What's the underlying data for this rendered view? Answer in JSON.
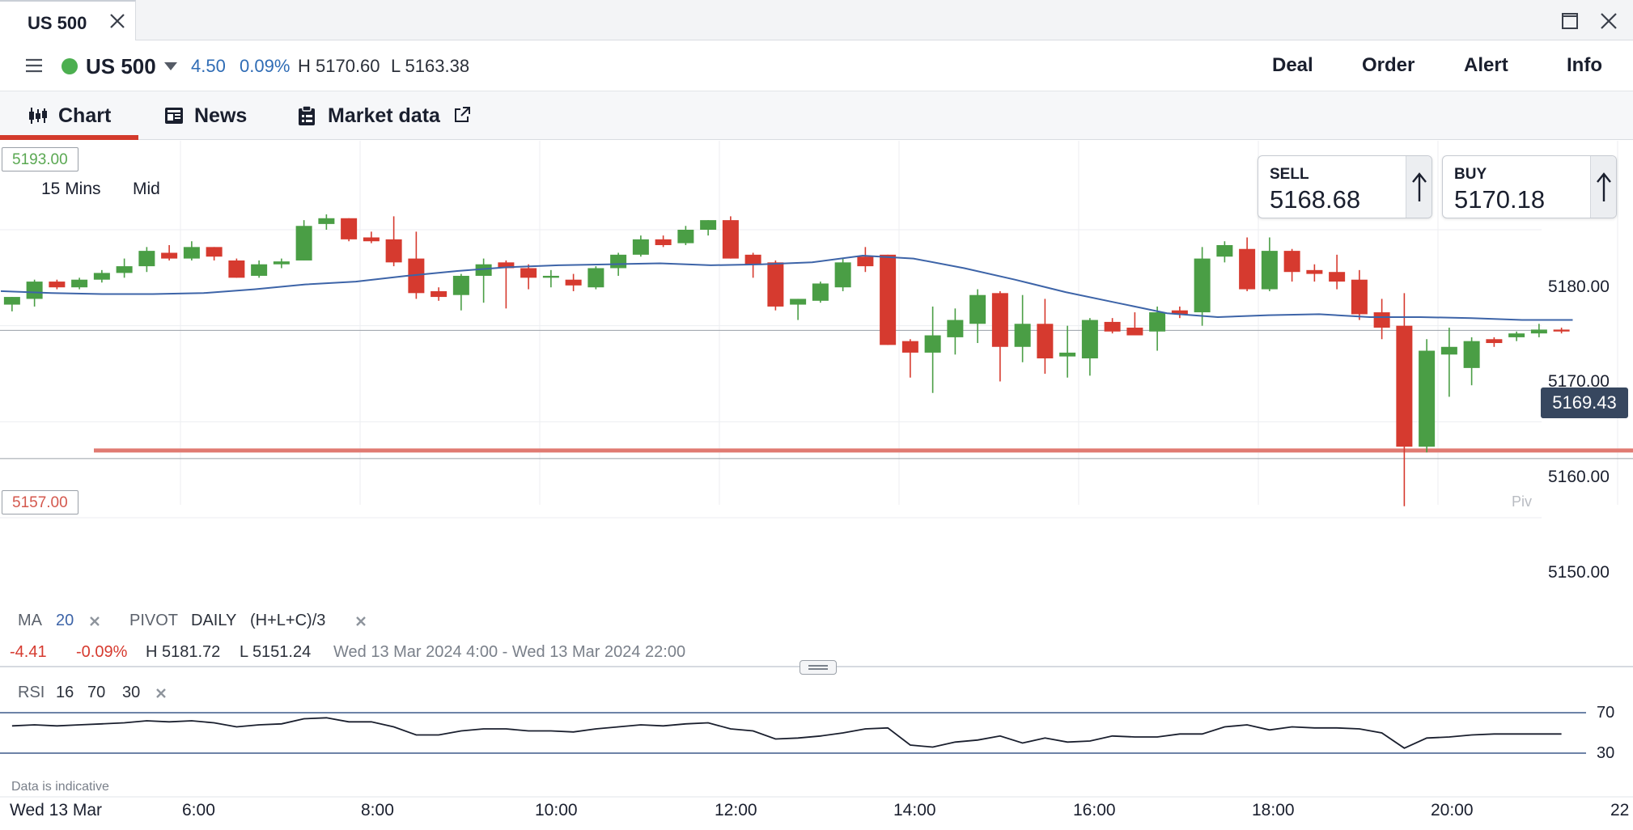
{
  "window": {
    "tab_title": "US 500"
  },
  "header": {
    "instrument": "US 500",
    "change": "4.50",
    "change_pct": "0.09%",
    "high": "H 5170.60",
    "low": "L 5163.38",
    "actions": [
      "Deal",
      "Order",
      "Alert",
      "Info"
    ]
  },
  "tabs": [
    {
      "label": "Chart",
      "icon": "candlestick-icon",
      "active": true
    },
    {
      "label": "News",
      "icon": "newspaper-icon",
      "active": false
    },
    {
      "label": "Market data",
      "icon": "clipboard-icon",
      "active": false
    }
  ],
  "chart": {
    "timeframe": "15 Mins",
    "price_type": "Mid",
    "upper_level": "5193.00",
    "lower_level": "5157.00",
    "current_price": "5169.43",
    "pivot_label": "Piv",
    "sell": {
      "label": "SELL",
      "price": "5168.68"
    },
    "buy": {
      "label": "BUY",
      "price": "5170.18"
    },
    "legend": {
      "ma_label": "MA",
      "ma_period": "20",
      "pivot_label": "PIVOT",
      "pivot_period": "DAILY",
      "pivot_formula": "(H+L+C)/3",
      "change": "-4.41",
      "change_pct": "-0.09%",
      "high": "H 5181.72",
      "low": "L 5151.24",
      "range": "Wed 13 Mar 2024 4:00 - Wed 13 Mar 2024 22:00"
    },
    "rsi": {
      "label": "RSI",
      "period": "16",
      "upper": "70",
      "lower": "30"
    },
    "note": "Data is indicative",
    "date_label": "Wed 13 Mar",
    "colors": {
      "up": "#4a9e45",
      "down": "#d63a2f",
      "ma": "#3d64a8",
      "upper_line": "#8cc97d",
      "lower_line": "#e07a72",
      "rsi_band": "#3d5a8a"
    }
  },
  "chart_data": {
    "type": "candlestick",
    "price_axis": {
      "ticks": [
        "5180.00",
        "5170.00",
        "5160.00",
        "5150.00"
      ],
      "ylim": [
        5150,
        5193
      ]
    },
    "time_axis": {
      "ticks": [
        "6:00",
        "8:00",
        "10:00",
        "12:00",
        "14:00",
        "16:00",
        "18:00",
        "20:00",
        "22"
      ]
    },
    "start_time": "4:00",
    "interval_minutes": 15,
    "candles": [
      {
        "o": 5172.2,
        "h": 5173.0,
        "l": 5171.5,
        "c": 5173.0
      },
      {
        "o": 5172.8,
        "h": 5174.8,
        "l": 5172.0,
        "c": 5174.6
      },
      {
        "o": 5174.6,
        "h": 5174.8,
        "l": 5173.8,
        "c": 5174.0
      },
      {
        "o": 5174.0,
        "h": 5175.0,
        "l": 5173.8,
        "c": 5174.8
      },
      {
        "o": 5174.8,
        "h": 5175.8,
        "l": 5174.5,
        "c": 5175.5
      },
      {
        "o": 5175.5,
        "h": 5177.0,
        "l": 5175.0,
        "c": 5176.2
      },
      {
        "o": 5176.2,
        "h": 5178.2,
        "l": 5175.6,
        "c": 5177.8
      },
      {
        "o": 5177.6,
        "h": 5178.4,
        "l": 5176.8,
        "c": 5177.0
      },
      {
        "o": 5177.0,
        "h": 5178.8,
        "l": 5176.8,
        "c": 5178.2
      },
      {
        "o": 5178.2,
        "h": 5178.2,
        "l": 5176.8,
        "c": 5177.2
      },
      {
        "o": 5176.8,
        "h": 5177.0,
        "l": 5175.0,
        "c": 5175.0
      },
      {
        "o": 5175.2,
        "h": 5176.8,
        "l": 5175.0,
        "c": 5176.4
      },
      {
        "o": 5176.4,
        "h": 5177.0,
        "l": 5176.0,
        "c": 5176.7
      },
      {
        "o": 5176.8,
        "h": 5181.0,
        "l": 5176.8,
        "c": 5180.4
      },
      {
        "o": 5180.6,
        "h": 5181.6,
        "l": 5180.0,
        "c": 5181.2
      },
      {
        "o": 5181.2,
        "h": 5181.2,
        "l": 5178.8,
        "c": 5179.0
      },
      {
        "o": 5179.2,
        "h": 5179.8,
        "l": 5178.6,
        "c": 5178.8
      },
      {
        "o": 5179.0,
        "h": 5181.4,
        "l": 5176.2,
        "c": 5176.6
      },
      {
        "o": 5177.0,
        "h": 5179.8,
        "l": 5172.8,
        "c": 5173.4
      },
      {
        "o": 5173.6,
        "h": 5174.0,
        "l": 5172.6,
        "c": 5173.0
      },
      {
        "o": 5173.2,
        "h": 5175.4,
        "l": 5171.6,
        "c": 5175.2
      },
      {
        "o": 5175.2,
        "h": 5177.0,
        "l": 5172.4,
        "c": 5176.4
      },
      {
        "o": 5176.6,
        "h": 5176.8,
        "l": 5171.8,
        "c": 5176.0
      },
      {
        "o": 5176.0,
        "h": 5176.4,
        "l": 5173.8,
        "c": 5175.0
      },
      {
        "o": 5175.0,
        "h": 5175.8,
        "l": 5174.0,
        "c": 5175.2
      },
      {
        "o": 5174.8,
        "h": 5175.4,
        "l": 5173.6,
        "c": 5174.2
      },
      {
        "o": 5174.0,
        "h": 5176.2,
        "l": 5173.8,
        "c": 5176.0
      },
      {
        "o": 5176.0,
        "h": 5177.6,
        "l": 5175.2,
        "c": 5177.4
      },
      {
        "o": 5177.4,
        "h": 5179.4,
        "l": 5177.2,
        "c": 5179.0
      },
      {
        "o": 5179.0,
        "h": 5179.4,
        "l": 5178.2,
        "c": 5178.4
      },
      {
        "o": 5178.6,
        "h": 5180.4,
        "l": 5178.4,
        "c": 5180.0
      },
      {
        "o": 5180.0,
        "h": 5181.0,
        "l": 5179.4,
        "c": 5181.0
      },
      {
        "o": 5181.0,
        "h": 5181.4,
        "l": 5177.0,
        "c": 5177.0
      },
      {
        "o": 5177.4,
        "h": 5177.6,
        "l": 5175.0,
        "c": 5176.4
      },
      {
        "o": 5176.6,
        "h": 5176.8,
        "l": 5171.6,
        "c": 5172.0
      },
      {
        "o": 5172.2,
        "h": 5172.8,
        "l": 5170.6,
        "c": 5172.8
      },
      {
        "o": 5172.6,
        "h": 5174.6,
        "l": 5172.4,
        "c": 5174.4
      },
      {
        "o": 5174.0,
        "h": 5177.0,
        "l": 5173.6,
        "c": 5176.6
      },
      {
        "o": 5177.2,
        "h": 5178.2,
        "l": 5175.6,
        "c": 5176.2
      },
      {
        "o": 5177.4,
        "h": 5177.4,
        "l": 5168.0,
        "c": 5168.0
      },
      {
        "o": 5168.4,
        "h": 5168.6,
        "l": 5164.6,
        "c": 5167.2
      },
      {
        "o": 5167.2,
        "h": 5172.0,
        "l": 5163.0,
        "c": 5169.0
      },
      {
        "o": 5168.8,
        "h": 5171.8,
        "l": 5167.0,
        "c": 5170.6
      },
      {
        "o": 5170.2,
        "h": 5173.8,
        "l": 5168.2,
        "c": 5173.2
      },
      {
        "o": 5173.4,
        "h": 5173.6,
        "l": 5164.2,
        "c": 5167.8
      },
      {
        "o": 5167.8,
        "h": 5173.2,
        "l": 5166.2,
        "c": 5170.2
      },
      {
        "o": 5170.2,
        "h": 5172.8,
        "l": 5165.0,
        "c": 5166.6
      },
      {
        "o": 5166.8,
        "h": 5170.0,
        "l": 5164.6,
        "c": 5167.2
      },
      {
        "o": 5166.6,
        "h": 5170.8,
        "l": 5164.8,
        "c": 5170.6
      },
      {
        "o": 5170.4,
        "h": 5170.8,
        "l": 5169.2,
        "c": 5169.4
      },
      {
        "o": 5169.8,
        "h": 5171.4,
        "l": 5169.2,
        "c": 5169.0
      },
      {
        "o": 5169.4,
        "h": 5172.0,
        "l": 5167.4,
        "c": 5171.4
      },
      {
        "o": 5171.6,
        "h": 5172.0,
        "l": 5170.8,
        "c": 5171.2
      },
      {
        "o": 5171.4,
        "h": 5178.2,
        "l": 5170.0,
        "c": 5177.0
      },
      {
        "o": 5177.2,
        "h": 5178.8,
        "l": 5176.6,
        "c": 5178.4
      },
      {
        "o": 5178.0,
        "h": 5179.2,
        "l": 5173.6,
        "c": 5173.8
      },
      {
        "o": 5173.8,
        "h": 5179.2,
        "l": 5173.6,
        "c": 5177.8
      },
      {
        "o": 5177.8,
        "h": 5178.0,
        "l": 5174.6,
        "c": 5175.6
      },
      {
        "o": 5175.8,
        "h": 5176.4,
        "l": 5174.6,
        "c": 5175.4
      },
      {
        "o": 5175.6,
        "h": 5177.4,
        "l": 5173.8,
        "c": 5174.6
      },
      {
        "o": 5174.8,
        "h": 5175.8,
        "l": 5170.6,
        "c": 5171.2
      },
      {
        "o": 5171.4,
        "h": 5172.8,
        "l": 5168.6,
        "c": 5169.8
      },
      {
        "o": 5170.0,
        "h": 5173.4,
        "l": 5151.2,
        "c": 5157.4
      },
      {
        "o": 5157.4,
        "h": 5168.6,
        "l": 5156.8,
        "c": 5167.4
      },
      {
        "o": 5167.0,
        "h": 5169.8,
        "l": 5162.6,
        "c": 5167.8
      },
      {
        "o": 5165.6,
        "h": 5168.8,
        "l": 5163.8,
        "c": 5168.4
      },
      {
        "o": 5168.6,
        "h": 5168.8,
        "l": 5167.8,
        "c": 5168.2
      },
      {
        "o": 5168.8,
        "h": 5169.4,
        "l": 5168.4,
        "c": 5169.2
      },
      {
        "o": 5169.2,
        "h": 5170.2,
        "l": 5168.8,
        "c": 5169.6
      },
      {
        "o": 5169.6,
        "h": 5169.8,
        "l": 5169.2,
        "c": 5169.4
      }
    ],
    "ma20": [
      5173.6,
      5173.4,
      5173.3,
      5173.3,
      5173.4,
      5173.8,
      5174.3,
      5174.6,
      5175.2,
      5175.7,
      5176.1,
      5176.3,
      5176.4,
      5176.5,
      5176.3,
      5176.4,
      5176.6,
      5177.3,
      5177.0,
      5176.0,
      5174.8,
      5173.5,
      5172.4,
      5171.3,
      5170.9,
      5171.1,
      5171.2,
      5170.9,
      5170.9,
      5170.8,
      5170.6,
      5170.6
    ],
    "rsi_values": [
      57,
      58,
      57,
      58,
      59,
      60,
      62,
      61,
      62,
      60,
      56,
      58,
      59,
      64,
      65,
      61,
      61,
      56,
      48,
      48,
      52,
      54,
      54,
      52,
      52,
      51,
      54,
      56,
      58,
      57,
      59,
      60,
      54,
      52,
      44,
      45,
      47,
      50,
      54,
      55,
      38,
      36,
      41,
      43,
      47,
      40,
      45,
      41,
      42,
      47,
      46,
      46,
      49,
      49,
      56,
      58,
      53,
      56,
      55,
      55,
      54,
      50,
      35,
      45,
      46,
      48,
      49,
      49,
      49,
      49
    ]
  }
}
